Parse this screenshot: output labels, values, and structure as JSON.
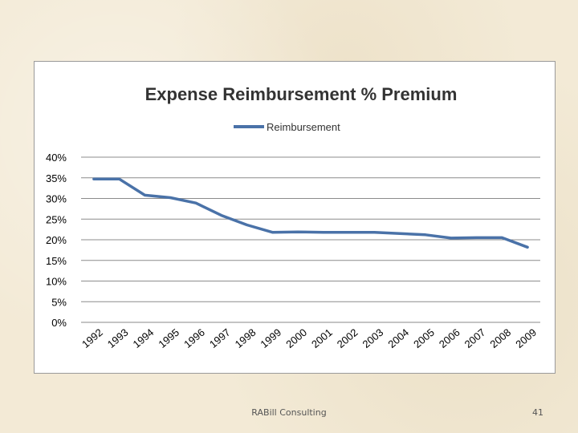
{
  "slide": {
    "footer_text": "RABill Consulting",
    "page_number": "41"
  },
  "colors": {
    "line": "#4a72a8",
    "grid": "#8c8c8c",
    "axis": "#888888",
    "text": "#000000"
  },
  "chart_data": {
    "type": "line",
    "title": "Expense Reimbursement % Premium",
    "xlabel": "",
    "ylabel": "",
    "legend_position": "top-center",
    "grid": true,
    "ylim": [
      0,
      40
    ],
    "yticks": [
      0,
      5,
      10,
      15,
      20,
      25,
      30,
      35,
      40
    ],
    "ytick_labels": [
      "0%",
      "5%",
      "10%",
      "15%",
      "20%",
      "25%",
      "30%",
      "35%",
      "40%"
    ],
    "categories": [
      "1992",
      "1993",
      "1994",
      "1995",
      "1996",
      "1997",
      "1998",
      "1999",
      "2000",
      "2001",
      "2002",
      "2003",
      "2004",
      "2005",
      "2006",
      "2007",
      "2008",
      "2009"
    ],
    "series": [
      {
        "name": "Reimbursement",
        "values": [
          34.7,
          34.7,
          30.8,
          30.2,
          28.9,
          25.9,
          23.6,
          21.8,
          21.9,
          21.8,
          21.8,
          21.8,
          21.5,
          21.2,
          20.4,
          20.5,
          20.5,
          18.2
        ]
      }
    ]
  }
}
